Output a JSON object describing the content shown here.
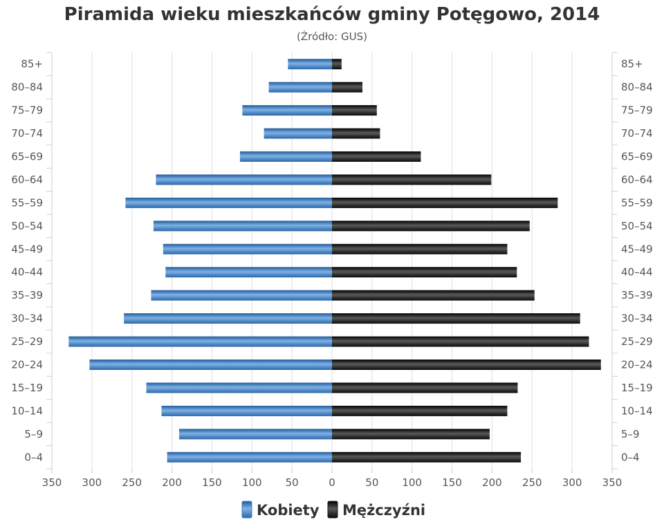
{
  "colors": {
    "female": "#3d7ec2",
    "male": "#1c1c1c",
    "grid": "#dddddd",
    "axis": "#c0d0e0"
  },
  "chart_data": {
    "type": "bar",
    "orientation": "horizontal",
    "layout": "population-pyramid",
    "title": "Piramida wieku mieszkańców gminy Potęgowo, 2014",
    "subtitle": "(Źródło: GUS)",
    "categories": [
      "85+",
      "80–84",
      "75–79",
      "70–74",
      "65–69",
      "60–64",
      "55–59",
      "50–54",
      "45–49",
      "40–44",
      "35–39",
      "30–34",
      "25–29",
      "20–24",
      "15–19",
      "10–14",
      "5–9",
      "0–4"
    ],
    "series": [
      {
        "name": "Kobiety",
        "side": "left",
        "values": [
          55,
          79,
          112,
          85,
          115,
          220,
          258,
          223,
          211,
          208,
          226,
          260,
          329,
          303,
          232,
          213,
          191,
          206
        ]
      },
      {
        "name": "Mężczyźni",
        "side": "right",
        "values": [
          12,
          38,
          56,
          60,
          111,
          199,
          282,
          247,
          219,
          231,
          253,
          310,
          321,
          336,
          232,
          219,
          197,
          236
        ]
      }
    ],
    "xlim": [
      -350,
      350
    ],
    "xticks": [
      "350",
      "300",
      "250",
      "200",
      "150",
      "100",
      "50",
      "0",
      "50",
      "100",
      "150",
      "200",
      "250",
      "300",
      "350"
    ],
    "grid": true,
    "legend_position": "bottom-center"
  }
}
